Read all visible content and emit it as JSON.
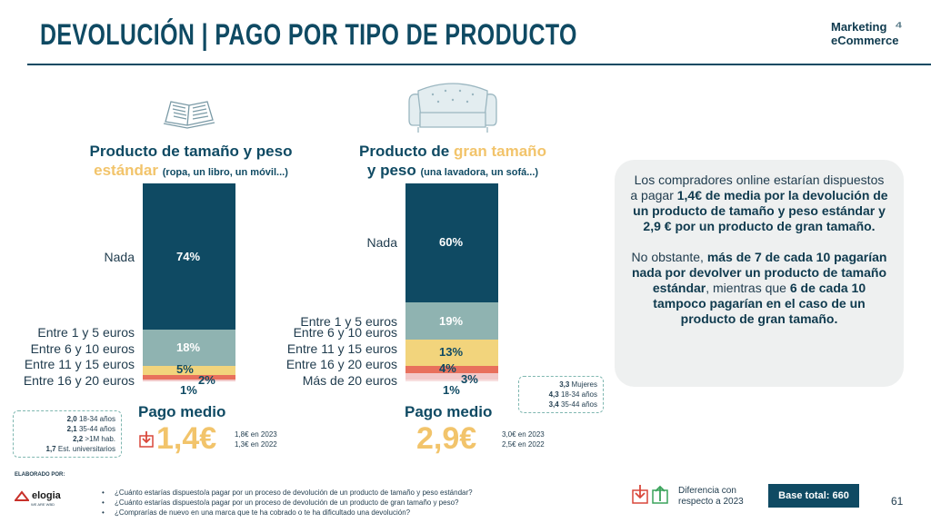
{
  "header": {
    "title": "DEVOLUCIÓN | PAGO POR TIPO DE PRODUCTO",
    "logo_line1": "Marketing",
    "logo_line2": "eCommerce"
  },
  "colors": {
    "navy": "#0f4a63",
    "teal": "#8fb3b1",
    "yellow": "#f2d47c",
    "red": "#e8705c",
    "pink": "#f2c9c9",
    "gold": "#f2c46b"
  },
  "chart_data": [
    {
      "type": "bar",
      "stacked": true,
      "title_part1": "Producto de tamaño y peso",
      "title_highlight": "estándar",
      "title_note": "(ropa, un libro, un móvil...)",
      "categories": [
        "Nada",
        "Entre 1 y 5 euros",
        "Entre 6 y 10 euros",
        "Entre 11 y 15 euros",
        "Entre 16 y 20 euros"
      ],
      "values": [
        74,
        18,
        5,
        2,
        1
      ],
      "labels": [
        "74%",
        "18%",
        "5%",
        "2%",
        "1%"
      ],
      "ylim": [
        0,
        100
      ]
    },
    {
      "type": "bar",
      "stacked": true,
      "title_part1": "Producto de",
      "title_highlight": "gran tamaño",
      "title_part2": "y peso",
      "title_note": "(una lavadora, un sofá...)",
      "categories": [
        "Nada",
        "Entre 1 y 5 euros",
        "Entre 6 y 10 euros",
        "Entre 11 y 15 euros",
        "Entre 16 y 20 euros",
        "Más de 20 euros"
      ],
      "values": [
        60,
        19,
        13,
        4,
        3,
        1
      ],
      "labels": [
        "60%",
        "19%",
        "13%",
        "4%",
        "3%",
        "1%"
      ],
      "ylim": [
        0,
        100
      ]
    }
  ],
  "pago1": {
    "label": "Pago medio",
    "value": "1,4€",
    "prev1": "1,8€ en 2023",
    "prev2": "1,3€ en 2022",
    "segments": [
      {
        "num": "2,0",
        "text": "18-34 años"
      },
      {
        "num": "2,1",
        "text": "35-44 años"
      },
      {
        "num": "2,2",
        "text": ">1M hab."
      },
      {
        "num": "1,7",
        "text": "Est. universitarios"
      }
    ]
  },
  "pago2": {
    "label": "Pago medio",
    "value": "2,9€",
    "prev1": "3,0€ en 2023",
    "prev2": "2,5€ en 2022",
    "segments": [
      {
        "num": "3,3",
        "text": "Mujeres"
      },
      {
        "num": "4,3",
        "text": "18-34 años"
      },
      {
        "num": "3,4",
        "text": "35-44 años"
      }
    ]
  },
  "info": {
    "p1a": "Los compradores online estarían dispuestos a pagar ",
    "p1b": "1,4€ de media por la devolución de un producto de tamaño y peso estándar y 2,9 € por un producto de gran tamaño.",
    "p2a": "No obstante, ",
    "p2b": "más de 7 de cada 10 pagarían nada por devolver un producto de tamaño estándar",
    "p2c": ", mientras que ",
    "p2d": "6 de cada 10 tampoco pagarían en el caso de un producto de gran tamaño."
  },
  "footer": {
    "elaborado": "ELABORADO POR:",
    "brand": "elogia",
    "brand_sub": "WE ARE WBD",
    "questions": [
      "¿Cuánto estarías dispuesto/a pagar por un proceso de devolución de un producto de tamaño y peso estándar?",
      "¿Cuánto estarías dispuesto/a pagar por un proceso de devolución de un producto de gran tamaño y peso?",
      "¿Comprarías de nuevo en una marca que te ha cobrado o te ha dificultado una devolución?"
    ],
    "legend_line1": "Diferencia con",
    "legend_line2": "respecto a 2023",
    "base": "Base total: 660",
    "page": "61"
  }
}
